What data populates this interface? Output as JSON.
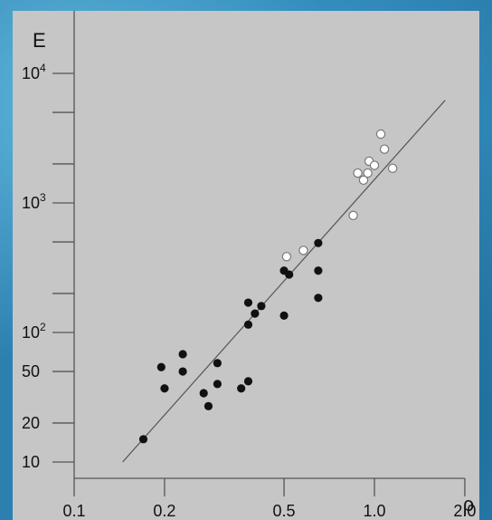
{
  "chart_data": {
    "type": "scatter",
    "title": "",
    "xlabel": "ρ",
    "ylabel": "E",
    "x_scale": "log",
    "y_scale": "log",
    "xlim": [
      0.1,
      2.5
    ],
    "ylim": [
      7,
      20000
    ],
    "grid": false,
    "x_ticks": [
      {
        "value": 0.1,
        "label": "0.1"
      },
      {
        "value": 0.2,
        "label": "0.2"
      },
      {
        "value": 0.5,
        "label": "0.5"
      },
      {
        "value": 1.0,
        "label": "1.0"
      },
      {
        "value": 2.0,
        "label": "2.0"
      }
    ],
    "y_ticks": [
      {
        "value": 10,
        "label": "10"
      },
      {
        "value": 20,
        "label": "20"
      },
      {
        "value": 50,
        "label": "50"
      },
      {
        "value": 100,
        "label": "10",
        "exp": "2"
      },
      {
        "value": 200,
        "label": ""
      },
      {
        "value": 500,
        "label": ""
      },
      {
        "value": 1000,
        "label": "10",
        "exp": "3"
      },
      {
        "value": 2000,
        "label": ""
      },
      {
        "value": 5000,
        "label": ""
      },
      {
        "value": 10000,
        "label": "10",
        "exp": "4"
      }
    ],
    "series": [
      {
        "marker": "filled",
        "color": "#111111",
        "points": [
          [
            0.17,
            15
          ],
          [
            0.195,
            54
          ],
          [
            0.2,
            37
          ],
          [
            0.23,
            68
          ],
          [
            0.23,
            50
          ],
          [
            0.27,
            34
          ],
          [
            0.28,
            27
          ],
          [
            0.3,
            58
          ],
          [
            0.3,
            40
          ],
          [
            0.36,
            37
          ],
          [
            0.38,
            42
          ],
          [
            0.38,
            170
          ],
          [
            0.38,
            115
          ],
          [
            0.4,
            140
          ],
          [
            0.42,
            160
          ],
          [
            0.5,
            135
          ],
          [
            0.5,
            300
          ],
          [
            0.52,
            280
          ],
          [
            0.65,
            490
          ],
          [
            0.65,
            300
          ],
          [
            0.65,
            185
          ]
        ]
      },
      {
        "marker": "open",
        "color": "#ffffff",
        "points": [
          [
            0.51,
            385
          ],
          [
            0.58,
            430
          ],
          [
            0.85,
            800
          ],
          [
            0.88,
            1700
          ],
          [
            0.92,
            1500
          ],
          [
            0.95,
            1700
          ],
          [
            0.96,
            2100
          ],
          [
            1.0,
            1950
          ],
          [
            1.05,
            3400
          ],
          [
            1.08,
            2600
          ],
          [
            1.15,
            1850
          ]
        ]
      }
    ],
    "fit_line": {
      "from": [
        0.145,
        10
      ],
      "to": [
        1.72,
        6200
      ]
    }
  }
}
